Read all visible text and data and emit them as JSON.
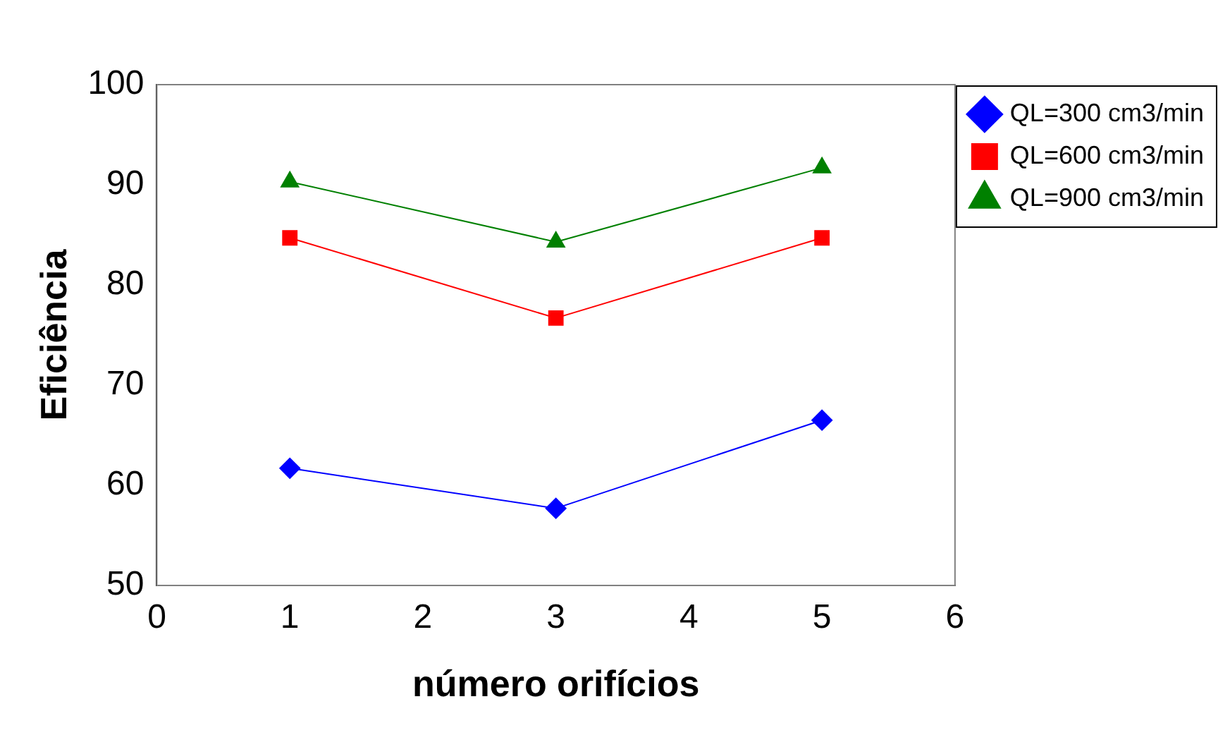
{
  "chart_data": {
    "type": "line",
    "xlabel": "número orifícios",
    "ylabel": "Eficiência",
    "xlim": [
      0,
      6
    ],
    "xticks": [
      0,
      1,
      2,
      3,
      4,
      5,
      6
    ],
    "ylim": [
      50,
      100
    ],
    "yticks": [
      50,
      60,
      70,
      80,
      90,
      100
    ],
    "grid": false,
    "legend": "right",
    "x": [
      1,
      3,
      5
    ],
    "series": [
      {
        "name": "QL=300 cm3/min",
        "color": "#0000ff",
        "marker": "diamond",
        "values": [
          61.7,
          57.7,
          66.5
        ]
      },
      {
        "name": "QL=600 cm3/min",
        "color": "#ff0000",
        "marker": "square",
        "values": [
          84.7,
          76.7,
          84.7
        ]
      },
      {
        "name": "QL=900 cm3/min",
        "color": "#008000",
        "marker": "triangle",
        "values": [
          90.3,
          84.3,
          91.7
        ]
      }
    ]
  }
}
